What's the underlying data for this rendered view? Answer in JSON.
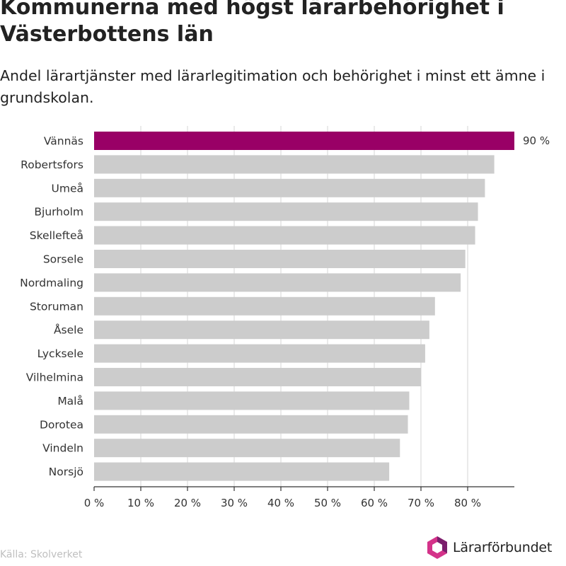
{
  "title": "Kommunerna med högst lärarbehörighet i Västerbottens län",
  "subtitle": "Andel lärartjänster med lärarlegitimation och behörighet i minst ett ämne i grundskolan.",
  "source": "Källa: Skolverket",
  "logo_text": "Lärarförbundet",
  "colors": {
    "highlight": "#990066",
    "bar": "#cccccc",
    "grid": "#dddddd",
    "axis": "#333333",
    "logo_pink": "#d4338a",
    "logo_purple": "#7a1e6c"
  },
  "chart_data": {
    "type": "bar",
    "orientation": "horizontal",
    "categories": [
      "Vännäs",
      "Robertsfors",
      "Umeå",
      "Bjurholm",
      "Skellefteå",
      "Sorsele",
      "Nordmaling",
      "Storuman",
      "Åsele",
      "Lycksele",
      "Vilhelmina",
      "Malå",
      "Dorotea",
      "Vindeln",
      "Norsjö"
    ],
    "values": [
      90,
      85.7,
      83.7,
      82.2,
      81.6,
      79.5,
      78.5,
      73,
      71.8,
      70.9,
      70,
      67.5,
      67.2,
      65.5,
      63.2
    ],
    "highlight_index": 0,
    "data_labels": [
      "90 %",
      "",
      "",
      "",
      "",
      "",
      "",
      "",
      "",
      "",
      "",
      "",
      "",
      "",
      ""
    ],
    "xlim": [
      0,
      90
    ],
    "x_ticks": [
      0,
      10,
      20,
      30,
      40,
      50,
      60,
      70,
      80
    ],
    "x_tick_labels": [
      "0 %",
      "10 %",
      "20 %",
      "30 %",
      "40 %",
      "50 %",
      "60 %",
      "70 %",
      "80 %"
    ],
    "grid": true,
    "legend": "none"
  }
}
